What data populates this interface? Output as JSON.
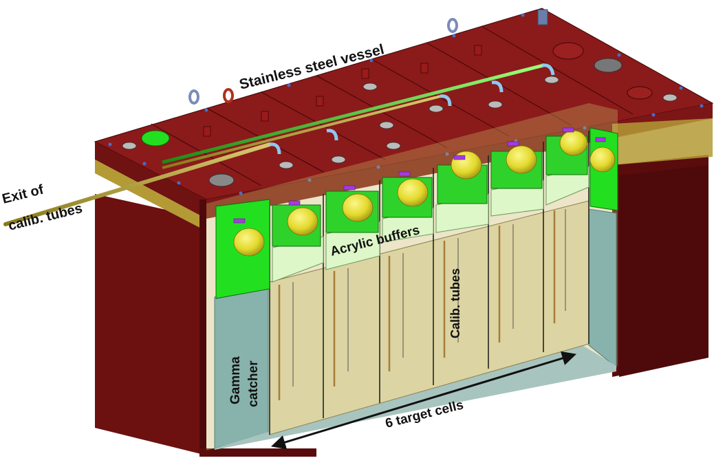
{
  "labels": {
    "vessel": "Stainless steel vessel",
    "exit_line1": "Exit of",
    "exit_line2": "calib. tubes",
    "acrylic": "Acrylic  buffers",
    "calib": "Calib. tubes",
    "gamma_line1": "Gamma",
    "gamma_line2": "catcher",
    "target": "6 target cells"
  },
  "colors": {
    "steel": "#7a1414",
    "steel_dark": "#4e0a0a",
    "steel_top": "#8e1c1c",
    "gold": "#b49a35",
    "green": "#22e01f",
    "acrylic": "#ddf7c8",
    "target_liquid": "#dcd4a2",
    "gamma_liquid": "#88b2ac",
    "pmt": "#e6df32"
  },
  "icons": [
    "pmt-icon",
    "lifting-eye-icon",
    "flange-icon",
    "double-arrow-icon"
  ]
}
